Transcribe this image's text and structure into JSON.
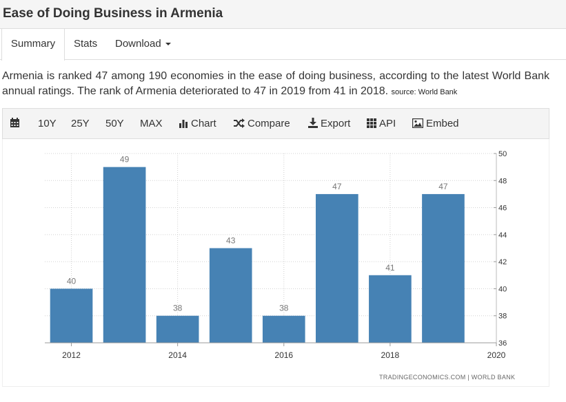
{
  "header": {
    "title": "Ease of Doing Business in Armenia"
  },
  "tabs": [
    {
      "label": "Summary",
      "active": true
    },
    {
      "label": "Stats",
      "active": false
    },
    {
      "label": "Download",
      "active": false
    }
  ],
  "description": {
    "text": "Armenia is ranked 47 among 190 economies in the ease of doing business, according to the latest World Bank annual ratings. The rank of Armenia deteriorated to 47 in 2019 from 41 in 2018.",
    "source": "source: World Bank"
  },
  "toolbar": {
    "ranges": [
      "10Y",
      "25Y",
      "50Y",
      "MAX"
    ],
    "chart_label": "Chart",
    "compare_label": "Compare",
    "export_label": "Export",
    "api_label": "API",
    "embed_label": "Embed"
  },
  "colors": {
    "bar": "#4682b4",
    "accent": "#333333"
  },
  "chart_data": {
    "type": "bar",
    "x": [
      2012,
      2013,
      2014,
      2015,
      2016,
      2017,
      2018,
      2019
    ],
    "values": [
      40,
      49,
      38,
      43,
      38,
      47,
      41,
      47
    ],
    "data_labels": [
      "40",
      "49",
      "38",
      "43",
      "38",
      "47",
      "41",
      "47"
    ],
    "x_ticks": [
      "2012",
      "2014",
      "2016",
      "2018",
      "2020"
    ],
    "x_tick_values": [
      2012,
      2014,
      2016,
      2018,
      2020
    ],
    "y_ticks": [
      "36",
      "38",
      "40",
      "42",
      "44",
      "46",
      "48",
      "50"
    ],
    "y_tick_values": [
      36,
      38,
      40,
      42,
      44,
      46,
      48,
      50
    ],
    "ylim": [
      36,
      50
    ],
    "xlim": [
      2011.5,
      2020
    ],
    "y_axis_position": "right",
    "grid": true,
    "title": "",
    "xlabel": "",
    "ylabel": ""
  },
  "credit": "TRADINGECONOMICS.COM | WORLD BANK"
}
